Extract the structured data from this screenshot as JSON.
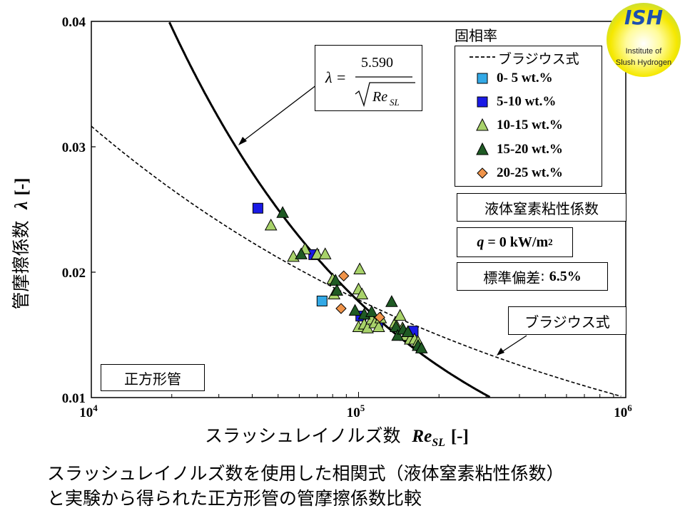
{
  "logo": {
    "abbr": "ISH",
    "line1": "Institute of",
    "line2": "Slush Hydrogen"
  },
  "legend": {
    "title": "固相率",
    "items": [
      {
        "label": "ブラジウス式",
        "kind": "dashed-line"
      },
      {
        "label": "0- 5 wt.%",
        "kind": "square",
        "fill": "#33a9e6"
      },
      {
        "label": "5-10 wt.%",
        "kind": "square",
        "fill": "#1a1ae6"
      },
      {
        "label": "10-15 wt.%",
        "kind": "triangle",
        "fill": "#a8d26a"
      },
      {
        "label": "15-20 wt.%",
        "kind": "triangle",
        "fill": "#1f5a24"
      },
      {
        "label": "20-25 wt.%",
        "kind": "diamond",
        "fill": "#f0944a"
      }
    ]
  },
  "boxes": {
    "viscosity": "液体窒素粘性係数",
    "heat_flux": {
      "lhs": "q",
      "eq": " = 0 kW/m",
      "sup": "2"
    },
    "std_dev": {
      "label": "標準偏差",
      "sep": ": ",
      "value": "6.5%"
    },
    "blasius": "ブラジウス式",
    "duct": "正方形管",
    "formula": {
      "lhs": "λ",
      "eq": "=",
      "numerator": "5.590",
      "denom_base": "Re",
      "denom_sub": "SL"
    }
  },
  "axes": {
    "xlabel_jp": "スラッシュレイノルズ数",
    "xlabel_sym": "Re",
    "xlabel_sub": "SL",
    "xlabel_unit": "[-]",
    "ylabel_jp": "管摩擦係数",
    "ylabel_sym": "λ",
    "ylabel_unit": "[-]"
  },
  "caption": {
    "line1": "スラッシュレイノルズ数を使用した相関式（液体窒素粘性係数）",
    "line2": "と実験から得られた正方形管の管摩擦係数比較"
  },
  "chart_data": {
    "type": "scatter",
    "xscale": "log",
    "xlim": [
      10000,
      1000000
    ],
    "ylim": [
      0.01,
      0.04
    ],
    "x_ticks": [
      {
        "value": 10000,
        "base": "10",
        "exp": "4"
      },
      {
        "value": 100000,
        "base": "10",
        "exp": "5"
      },
      {
        "value": 1000000,
        "base": "10",
        "exp": "6"
      }
    ],
    "y_ticks": [
      "0.01",
      "0.02",
      "0.03",
      "0.04"
    ],
    "y_tick_values": [
      0.01,
      0.02,
      0.03,
      0.04
    ],
    "lines": [
      {
        "name": "correlation",
        "formula": "5.590/sqrt(Re)",
        "style": "solid",
        "x_range": [
          19600,
          310000
        ]
      },
      {
        "name": "ブラジウス式",
        "formula": "0.3164/Re^0.25",
        "style": "dashed",
        "x_range": [
          10000,
          960000
        ]
      }
    ],
    "series": [
      {
        "name": "0- 5 wt.%",
        "marker": "square",
        "color": "#33a9e6",
        "points": [
          [
            73000,
            0.0177
          ]
        ]
      },
      {
        "name": "5-10 wt.%",
        "marker": "square",
        "color": "#1a1ae6",
        "points": [
          [
            42000,
            0.0251
          ],
          [
            68000,
            0.0214
          ],
          [
            102000,
            0.0165
          ],
          [
            118000,
            0.016
          ],
          [
            160000,
            0.0153
          ]
        ]
      },
      {
        "name": "10-15 wt.%",
        "marker": "triangle",
        "color": "#a8d26a",
        "points": [
          [
            47000,
            0.0237
          ],
          [
            57000,
            0.0212
          ],
          [
            63000,
            0.0218
          ],
          [
            70000,
            0.0214
          ],
          [
            75000,
            0.0214
          ],
          [
            80000,
            0.0194
          ],
          [
            81000,
            0.0182
          ],
          [
            100000,
            0.0186
          ],
          [
            101000,
            0.0202
          ],
          [
            103000,
            0.0182
          ],
          [
            100000,
            0.0156
          ],
          [
            105000,
            0.0158
          ],
          [
            108000,
            0.0155
          ],
          [
            112000,
            0.0162
          ],
          [
            115000,
            0.0159
          ],
          [
            119000,
            0.0156
          ],
          [
            121000,
            0.0163
          ],
          [
            137000,
            0.0159
          ],
          [
            143000,
            0.0165
          ],
          [
            146000,
            0.0155
          ],
          [
            150000,
            0.0149
          ],
          [
            156000,
            0.0146
          ],
          [
            162000,
            0.0146
          ],
          [
            167000,
            0.0144
          ]
        ]
      },
      {
        "name": "15-20 wt.%",
        "marker": "triangle",
        "color": "#1f5a24",
        "points": [
          [
            52000,
            0.0247
          ],
          [
            61000,
            0.0214
          ],
          [
            82000,
            0.0193
          ],
          [
            83000,
            0.0185
          ],
          [
            97000,
            0.0169
          ],
          [
            105000,
            0.0166
          ],
          [
            112000,
            0.0168
          ],
          [
            133000,
            0.0176
          ],
          [
            138000,
            0.0156
          ],
          [
            140000,
            0.0149
          ],
          [
            147000,
            0.0154
          ],
          [
            153000,
            0.0152
          ],
          [
            167000,
            0.0141
          ],
          [
            172000,
            0.0139
          ]
        ]
      },
      {
        "name": "20-25 wt.%",
        "marker": "diamond",
        "color": "#f0944a",
        "points": [
          [
            88000,
            0.0197
          ],
          [
            86000,
            0.0171
          ],
          [
            120000,
            0.0164
          ]
        ]
      }
    ]
  }
}
